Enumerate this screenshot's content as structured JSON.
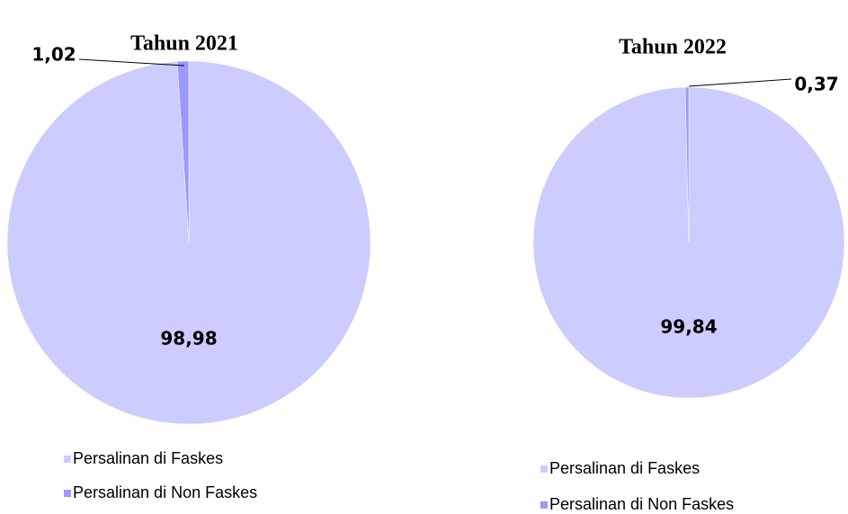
{
  "chart_data": [
    {
      "type": "pie",
      "title": "Tahun 2021",
      "categories": [
        "Persalinan di Faskes",
        "Persalinan di Non Faskes"
      ],
      "values": [
        98.98,
        1.02
      ],
      "value_labels": [
        "98,98",
        "1,02"
      ],
      "colors": [
        "#ccccff",
        "#9999ff"
      ]
    },
    {
      "type": "pie",
      "title": "Tahun 2022",
      "categories": [
        "Persalinan di Faskes",
        "Persalinan di Non Faskes"
      ],
      "values": [
        99.84,
        0.37
      ],
      "value_labels": [
        "99,84",
        "0,37"
      ],
      "colors": [
        "#ccccff",
        "#9999ff"
      ]
    }
  ]
}
